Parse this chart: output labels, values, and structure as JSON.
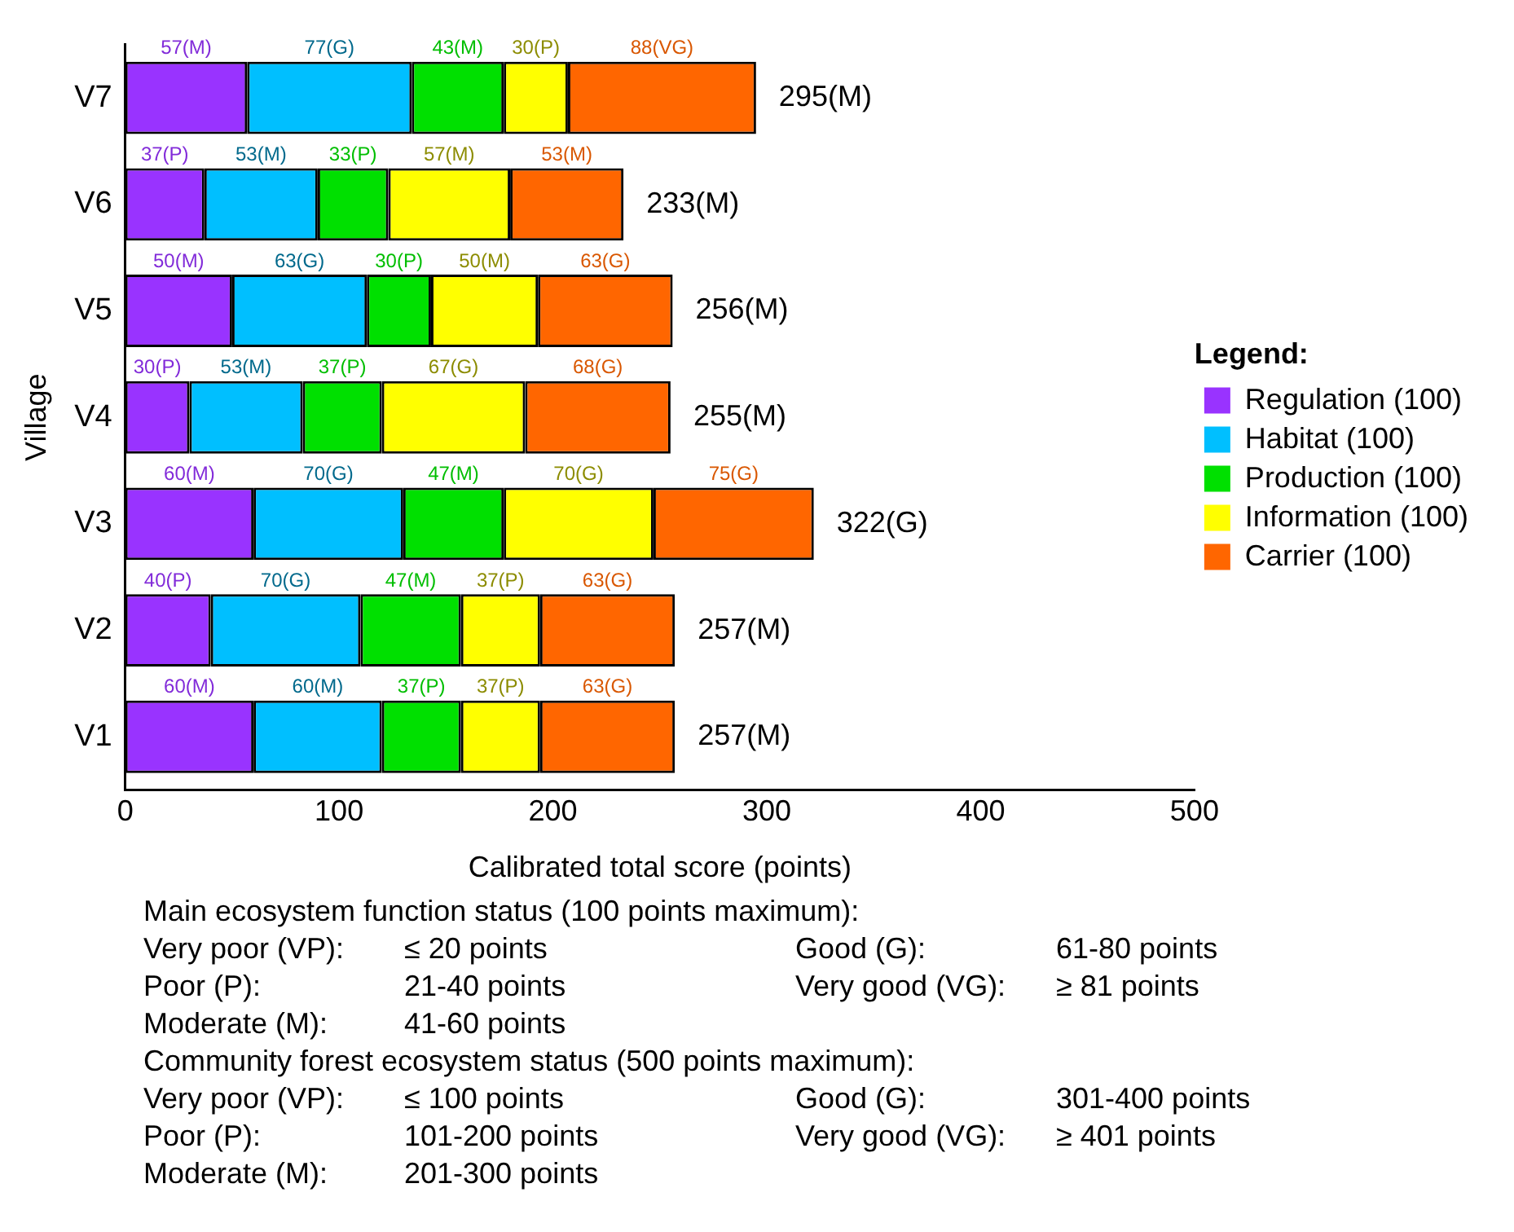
{
  "chart_data": {
    "type": "bar",
    "orientation": "horizontal",
    "stacked": true,
    "xlabel": "Calibrated total score (points)",
    "ylabel": "Village",
    "legend": "right",
    "legend_title": "Legend:",
    "categories": [
      "V7",
      "V6",
      "V5",
      "V4",
      "V3",
      "V2",
      "V1"
    ],
    "xlim": [
      0,
      500
    ],
    "xticks": [
      0,
      100,
      200,
      300,
      400,
      500
    ],
    "series": [
      {
        "name": "Regulation (100)",
        "color": "#9933ff",
        "values": [
          57,
          37,
          50,
          30,
          60,
          40,
          60
        ],
        "value_labels": [
          "57(M)",
          "37(P)",
          "50(M)",
          "30(P)",
          "60(M)",
          "40(P)",
          "60(M)"
        ]
      },
      {
        "name": "Habitat (100)",
        "color": "#00bfff",
        "values": [
          77,
          53,
          63,
          53,
          70,
          70,
          60
        ],
        "value_labels": [
          "77(G)",
          "53(M)",
          "63(G)",
          "53(M)",
          "70(G)",
          "70(G)",
          "60(M)"
        ]
      },
      {
        "name": "Production (100)",
        "color": "#00e000",
        "values": [
          43,
          33,
          30,
          37,
          47,
          47,
          37
        ],
        "value_labels": [
          "43(M)",
          "33(P)",
          "30(P)",
          "37(P)",
          "47(M)",
          "47(M)",
          "37(P)"
        ]
      },
      {
        "name": "Information (100)",
        "color": "#ffff00",
        "values": [
          30,
          57,
          50,
          67,
          70,
          37,
          37
        ],
        "value_labels": [
          "30(P)",
          "57(M)",
          "50(M)",
          "67(G)",
          "70(G)",
          "37(P)",
          "37(P)"
        ]
      },
      {
        "name": "Carrier (100)",
        "color": "#ff6600",
        "values": [
          88,
          53,
          63,
          68,
          75,
          63,
          63
        ],
        "value_labels": [
          "88(VG)",
          "53(M)",
          "63(G)",
          "68(G)",
          "75(G)",
          "63(G)",
          "63(G)"
        ]
      }
    ],
    "totals": [
      "295(M)",
      "233(M)",
      "256(M)",
      "255(M)",
      "322(G)",
      "257(M)",
      "257(M)"
    ],
    "annotations": [
      "Main ecosystem function status (100 points maximum):",
      "Very poor (VP): ≤ 20 points",
      "Good (G): 61-80 points",
      "Poor (P): 21-40 points",
      "Very good (VG): ≥ 81 points",
      "Moderate (M): 41-60 points",
      "Community forest ecosystem status (500 points maximum):",
      "Very poor (VP): ≤ 100 points",
      "Good (G): 301-400 points",
      "Poor (P): 101-200 points",
      "Very good (VG): ≥ 401 points",
      "Moderate (M): 201-300 points"
    ]
  }
}
